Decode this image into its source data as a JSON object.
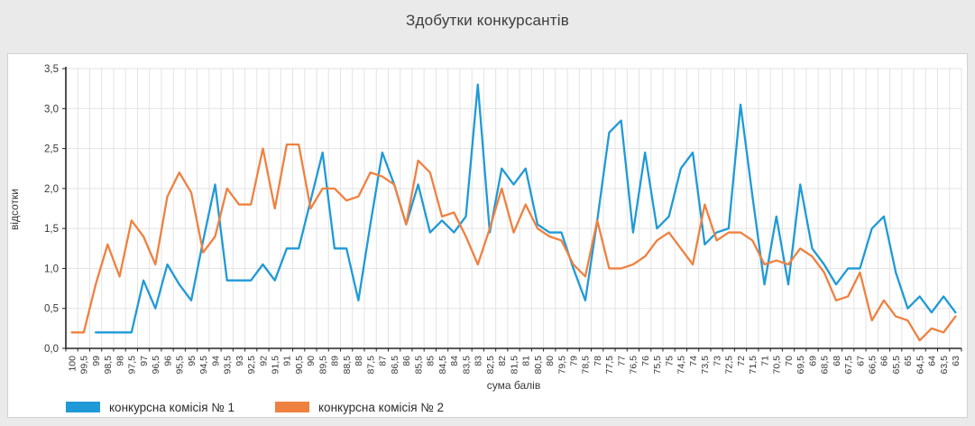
{
  "title": "Здобутки конкурсантів",
  "axes": {
    "x_title": "сума балів",
    "y_title": "відсотки",
    "y_tick_labels": [
      "0,0",
      "0,5",
      "1,0",
      "1,5",
      "2,0",
      "2,5",
      "3,0",
      "3,5"
    ]
  },
  "legend": {
    "items": [
      {
        "label": "конкурсна комісія № 1",
        "color": "#1f9ad7"
      },
      {
        "label": "конкурсна комісія № 2",
        "color": "#ef8140"
      }
    ]
  },
  "colors": {
    "series1": "#1f9ad7",
    "series2": "#ef8140",
    "gridline": "#e3e3e3",
    "axis": "#262626",
    "tick_text": "#383838",
    "panel_bg": "#ffffff",
    "page_bg": "#eaeaea"
  },
  "chart_data": {
    "type": "line",
    "title": "Здобутки конкурсантів",
    "xlabel": "сума балів",
    "ylabel": "відсотки",
    "ylim": [
      0,
      3.5
    ],
    "y_tick_step": 0.5,
    "grid": true,
    "legend_position": "bottom-left",
    "categories": [
      "100",
      "99,5",
      "99",
      "98,5",
      "98",
      "97,5",
      "97",
      "96,5",
      "96",
      "95,5",
      "95",
      "94,5",
      "94",
      "93,5",
      "93",
      "92,5",
      "92",
      "91,5",
      "91",
      "90,5",
      "90",
      "89,5",
      "89",
      "88,5",
      "88",
      "87,5",
      "87",
      "86,5",
      "86",
      "85,5",
      "85",
      "84,5",
      "84",
      "83,5",
      "83",
      "82,5",
      "82",
      "81,5",
      "81",
      "80,5",
      "80",
      "79,5",
      "79",
      "78,5",
      "78",
      "77,5",
      "77",
      "76,5",
      "76",
      "75,5",
      "75",
      "74,5",
      "74",
      "73,5",
      "73",
      "72,5",
      "72",
      "71,5",
      "71",
      "70,5",
      "70",
      "69,5",
      "69",
      "68,5",
      "68",
      "67,5",
      "67",
      "66,5",
      "66",
      "65,5",
      "65",
      "64,5",
      "64",
      "63,5",
      "63"
    ],
    "series": [
      {
        "name": "конкурсна комісія № 1",
        "color": "#1f9ad7",
        "values": [
          null,
          null,
          0.2,
          0.2,
          0.2,
          0.2,
          0.85,
          0.5,
          1.05,
          0.8,
          0.6,
          1.35,
          2.05,
          0.85,
          0.85,
          0.85,
          1.05,
          0.85,
          1.25,
          1.25,
          1.85,
          2.45,
          1.25,
          1.25,
          0.6,
          1.55,
          2.45,
          2.05,
          1.55,
          2.05,
          1.45,
          1.6,
          1.45,
          1.65,
          3.3,
          1.45,
          2.25,
          2.05,
          2.25,
          1.55,
          1.45,
          1.45,
          1.0,
          0.6,
          1.6,
          2.7,
          2.85,
          1.45,
          2.45,
          1.5,
          1.65,
          2.25,
          2.45,
          1.3,
          1.45,
          1.5,
          3.05,
          1.9,
          0.8,
          1.65,
          0.8,
          2.05,
          1.25,
          1.05,
          0.8,
          1.0,
          1.0,
          1.5,
          1.65,
          0.95,
          0.5,
          0.65,
          0.45,
          0.65,
          0.45
        ]
      },
      {
        "name": "конкурсна комісія № 2",
        "color": "#ef8140",
        "values": [
          0.2,
          0.2,
          0.8,
          1.3,
          0.9,
          1.6,
          1.4,
          1.05,
          1.9,
          2.2,
          1.95,
          1.2,
          1.4,
          2.0,
          1.8,
          1.8,
          2.5,
          1.75,
          2.55,
          2.55,
          1.75,
          2.0,
          2.0,
          1.85,
          1.9,
          2.2,
          2.15,
          2.05,
          1.55,
          2.35,
          2.2,
          1.65,
          1.7,
          1.4,
          1.05,
          1.5,
          2.0,
          1.45,
          1.8,
          1.5,
          1.4,
          1.35,
          1.05,
          0.9,
          1.6,
          1.0,
          1.0,
          1.05,
          1.15,
          1.35,
          1.45,
          1.25,
          1.05,
          1.8,
          1.35,
          1.45,
          1.45,
          1.35,
          1.05,
          1.1,
          1.05,
          1.25,
          1.15,
          0.95,
          0.6,
          0.65,
          0.95,
          0.35,
          0.6,
          0.4,
          0.35,
          0.1,
          0.25,
          0.2,
          0.4
        ]
      }
    ]
  }
}
